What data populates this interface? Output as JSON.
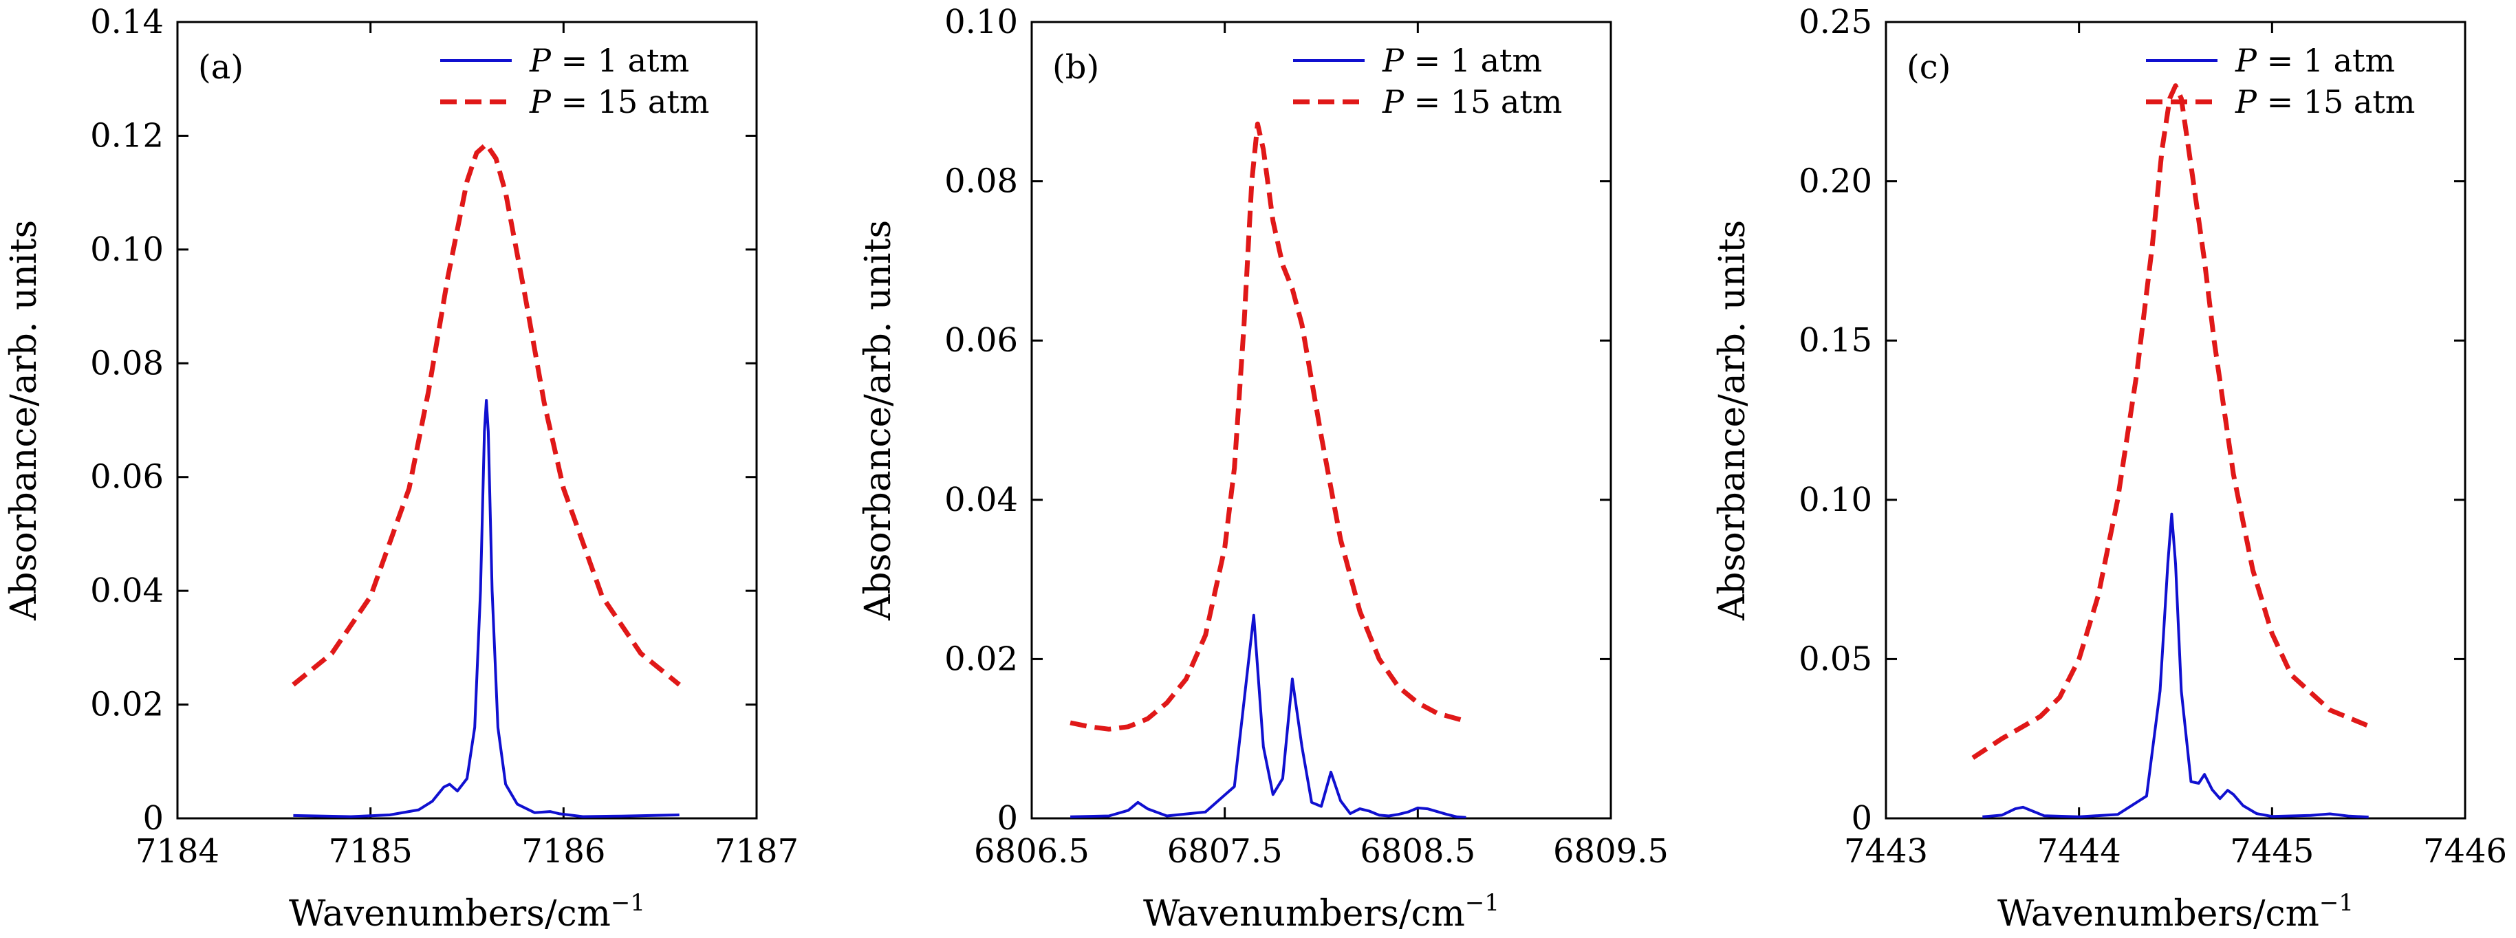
{
  "colors": {
    "p1": "#1010d0",
    "p15": "#e01818",
    "axes": "#000000"
  },
  "chart_data": [
    {
      "type": "line",
      "panel_label": "(a)",
      "xlabel": "Wavenumbers/cm",
      "xlabel_sup": "−1",
      "ylabel": "Absorbance/arb. units",
      "xlim": [
        7184,
        7187
      ],
      "ylim": [
        0,
        0.14
      ],
      "xticks": [
        7184,
        7185,
        7186,
        7187
      ],
      "xtick_labels": [
        "7184",
        "7185",
        "7186",
        "7187"
      ],
      "yticks": [
        0,
        0.02,
        0.04,
        0.06,
        0.08,
        0.1,
        0.12,
        0.14
      ],
      "ytick_labels": [
        "0",
        "0.02",
        "0.04",
        "0.06",
        "0.08",
        "0.10",
        "0.12",
        "0.14"
      ],
      "legend_position": "top-right",
      "series": [
        {
          "name": "P = 1 atm",
          "legend_var": "P",
          "legend_rest": " = 1 atm",
          "style": "solid",
          "x": [
            7184.6,
            7184.9,
            7185.1,
            7185.25,
            7185.32,
            7185.38,
            7185.41,
            7185.45,
            7185.5,
            7185.54,
            7185.57,
            7185.59,
            7185.6,
            7185.61,
            7185.63,
            7185.66,
            7185.7,
            7185.76,
            7185.85,
            7185.93,
            7185.98,
            7186.1,
            7186.3,
            7186.6
          ],
          "y": [
            0.0005,
            0.0003,
            0.0006,
            0.0015,
            0.003,
            0.0055,
            0.006,
            0.0048,
            0.007,
            0.016,
            0.04,
            0.068,
            0.0735,
            0.068,
            0.04,
            0.016,
            0.006,
            0.0025,
            0.001,
            0.0012,
            0.0008,
            0.0003,
            0.0004,
            0.0006
          ]
        },
        {
          "name": "P = 15 atm",
          "legend_var": "P",
          "legend_rest": " = 15 atm",
          "style": "dashed",
          "x": [
            7184.6,
            7184.8,
            7185.0,
            7185.2,
            7185.3,
            7185.4,
            7185.5,
            7185.55,
            7185.6,
            7185.65,
            7185.7,
            7185.8,
            7185.9,
            7186.0,
            7186.2,
            7186.4,
            7186.6
          ],
          "y": [
            0.0235,
            0.029,
            0.039,
            0.058,
            0.075,
            0.095,
            0.112,
            0.117,
            0.1185,
            0.116,
            0.11,
            0.092,
            0.073,
            0.058,
            0.039,
            0.029,
            0.0235
          ]
        }
      ]
    },
    {
      "type": "line",
      "panel_label": "(b)",
      "xlabel": "Wavenumbers/cm",
      "xlabel_sup": "−1",
      "ylabel": "Absorbance/arb. units",
      "xlim": [
        6806.5,
        6809.5
      ],
      "ylim": [
        0,
        0.1
      ],
      "xticks": [
        6806.5,
        6807.5,
        6808.5,
        6809.5
      ],
      "xtick_labels": [
        "6806.5",
        "6807.5",
        "6808.5",
        "6809.5"
      ],
      "yticks": [
        0,
        0.02,
        0.04,
        0.06,
        0.08,
        0.1
      ],
      "ytick_labels": [
        "0",
        "0.02",
        "0.04",
        "0.06",
        "0.08",
        "0.10"
      ],
      "legend_position": "top-right",
      "series": [
        {
          "name": "P = 1 atm",
          "legend_var": "P",
          "legend_rest": " = 1 atm",
          "style": "solid",
          "x": [
            6806.7,
            6806.9,
            6807.0,
            6807.05,
            6807.1,
            6807.2,
            6807.4,
            6807.55,
            6807.65,
            6807.7,
            6807.75,
            6807.8,
            6807.85,
            6807.9,
            6807.95,
            6808.0,
            6808.05,
            6808.1,
            6808.15,
            6808.2,
            6808.25,
            6808.3,
            6808.35,
            6808.4,
            6808.45,
            6808.5,
            6808.55,
            6808.65,
            6808.7,
            6808.75
          ],
          "y": [
            0.0002,
            0.0003,
            0.001,
            0.002,
            0.0012,
            0.0003,
            0.0008,
            0.004,
            0.0255,
            0.009,
            0.003,
            0.005,
            0.0175,
            0.009,
            0.002,
            0.0015,
            0.0058,
            0.0022,
            0.0006,
            0.0012,
            0.0009,
            0.0004,
            0.0003,
            0.0005,
            0.0008,
            0.0013,
            0.0012,
            0.0005,
            0.0002,
            0.0001
          ]
        },
        {
          "name": "P = 15 atm",
          "legend_var": "P",
          "legend_rest": " = 15 atm",
          "style": "dashed",
          "x": [
            6806.7,
            6806.8,
            6806.9,
            6807.0,
            6807.1,
            6807.2,
            6807.3,
            6807.4,
            6807.5,
            6807.55,
            6807.6,
            6807.64,
            6807.67,
            6807.7,
            6807.75,
            6807.8,
            6807.85,
            6807.9,
            6808.0,
            6808.1,
            6808.2,
            6808.3,
            6808.4,
            6808.5,
            6808.6,
            6808.75
          ],
          "y": [
            0.012,
            0.0115,
            0.0112,
            0.0115,
            0.0125,
            0.0145,
            0.0175,
            0.023,
            0.034,
            0.044,
            0.062,
            0.08,
            0.0872,
            0.084,
            0.075,
            0.0695,
            0.0665,
            0.062,
            0.048,
            0.035,
            0.026,
            0.02,
            0.0165,
            0.0145,
            0.0132,
            0.0122
          ]
        }
      ]
    },
    {
      "type": "line",
      "panel_label": "(c)",
      "xlabel": "Wavenumbers/cm",
      "xlabel_sup": "−1",
      "ylabel": "Absorbance/arb. units",
      "xlim": [
        7443,
        7446
      ],
      "ylim": [
        0,
        0.25
      ],
      "xticks": [
        7443,
        7444,
        7445,
        7446
      ],
      "xtick_labels": [
        "7443",
        "7444",
        "7445",
        "7446"
      ],
      "yticks": [
        0,
        0.05,
        0.1,
        0.15,
        0.2,
        0.25
      ],
      "ytick_labels": [
        "0",
        "0.05",
        "0.10",
        "0.15",
        "0.20",
        "0.25"
      ],
      "legend_position": "top-right",
      "series": [
        {
          "name": "P = 1 atm",
          "legend_var": "P",
          "legend_rest": " = 1 atm",
          "style": "solid",
          "x": [
            7443.5,
            7443.6,
            7443.67,
            7443.71,
            7443.75,
            7443.82,
            7444.0,
            7444.2,
            7444.35,
            7444.42,
            7444.46,
            7444.48,
            7444.5,
            7444.53,
            7444.58,
            7444.62,
            7444.65,
            7444.69,
            7444.73,
            7444.77,
            7444.8,
            7444.85,
            7444.92,
            7445.0,
            7445.2,
            7445.3,
            7445.4,
            7445.5
          ],
          "y": [
            0.0005,
            0.001,
            0.003,
            0.0035,
            0.0025,
            0.0008,
            0.0005,
            0.0012,
            0.007,
            0.04,
            0.08,
            0.0955,
            0.08,
            0.04,
            0.0115,
            0.011,
            0.0138,
            0.009,
            0.0062,
            0.0088,
            0.0075,
            0.004,
            0.0015,
            0.0006,
            0.0009,
            0.0014,
            0.0007,
            0.0004
          ]
        },
        {
          "name": "P = 15 atm",
          "legend_var": "P",
          "legend_rest": " = 15 atm",
          "style": "dashed",
          "x": [
            7443.45,
            7443.6,
            7443.8,
            7443.9,
            7444.0,
            7444.1,
            7444.2,
            7444.3,
            7444.38,
            7444.43,
            7444.47,
            7444.5,
            7444.53,
            7444.58,
            7444.65,
            7444.7,
            7444.8,
            7444.9,
            7445.0,
            7445.1,
            7445.3,
            7445.5
          ],
          "y": [
            0.019,
            0.025,
            0.032,
            0.038,
            0.05,
            0.07,
            0.1,
            0.14,
            0.18,
            0.21,
            0.226,
            0.23,
            0.226,
            0.205,
            0.175,
            0.15,
            0.108,
            0.078,
            0.058,
            0.045,
            0.034,
            0.029
          ]
        }
      ]
    }
  ]
}
